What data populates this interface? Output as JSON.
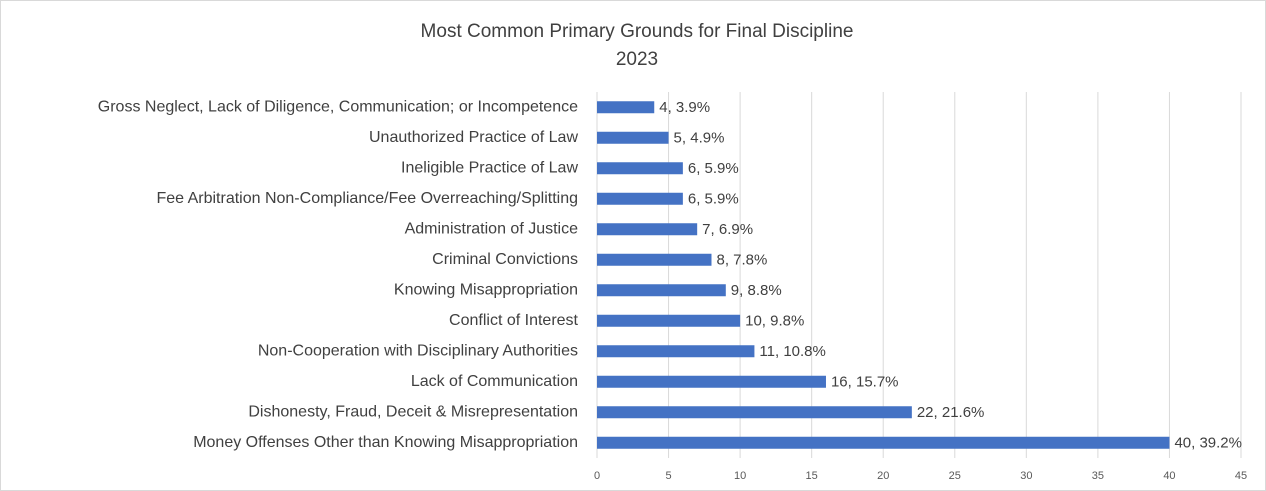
{
  "chart_data": {
    "type": "bar",
    "orientation": "horizontal",
    "title": "Most Common Primary Grounds for Final Discipline",
    "subtitle": "2023",
    "categories": [
      "Gross Neglect, Lack of Diligence, Communication; or Incompetence",
      "Unauthorized Practice of Law",
      "Ineligible Practice of Law",
      "Fee Arbitration Non-Compliance/Fee Overreaching/Splitting",
      "Administration of Justice",
      "Criminal Convictions",
      "Knowing Misappropriation",
      "Conflict of Interest",
      "Non-Cooperation with Disciplinary Authorities",
      "Lack of Communication",
      "Dishonesty, Fraud, Deceit & Misrepresentation",
      "Money Offenses Other than Knowing Misappropriation"
    ],
    "values": [
      4,
      5,
      6,
      6,
      7,
      8,
      9,
      10,
      11,
      16,
      22,
      40
    ],
    "value_labels": [
      "4, 3.9%",
      "5, 4.9%",
      "6, 5.9%",
      "6, 5.9%",
      "7, 6.9%",
      "8, 7.8%",
      "9, 8.8%",
      "10, 9.8%",
      "11, 10.8%",
      "16, 15.7%",
      "22, 21.6%",
      "40, 39.2%"
    ],
    "color": "#4472c4",
    "xlim": [
      0,
      45
    ],
    "xticks": [
      0,
      5,
      10,
      15,
      20,
      25,
      30,
      35,
      40,
      45
    ],
    "grid": true
  }
}
